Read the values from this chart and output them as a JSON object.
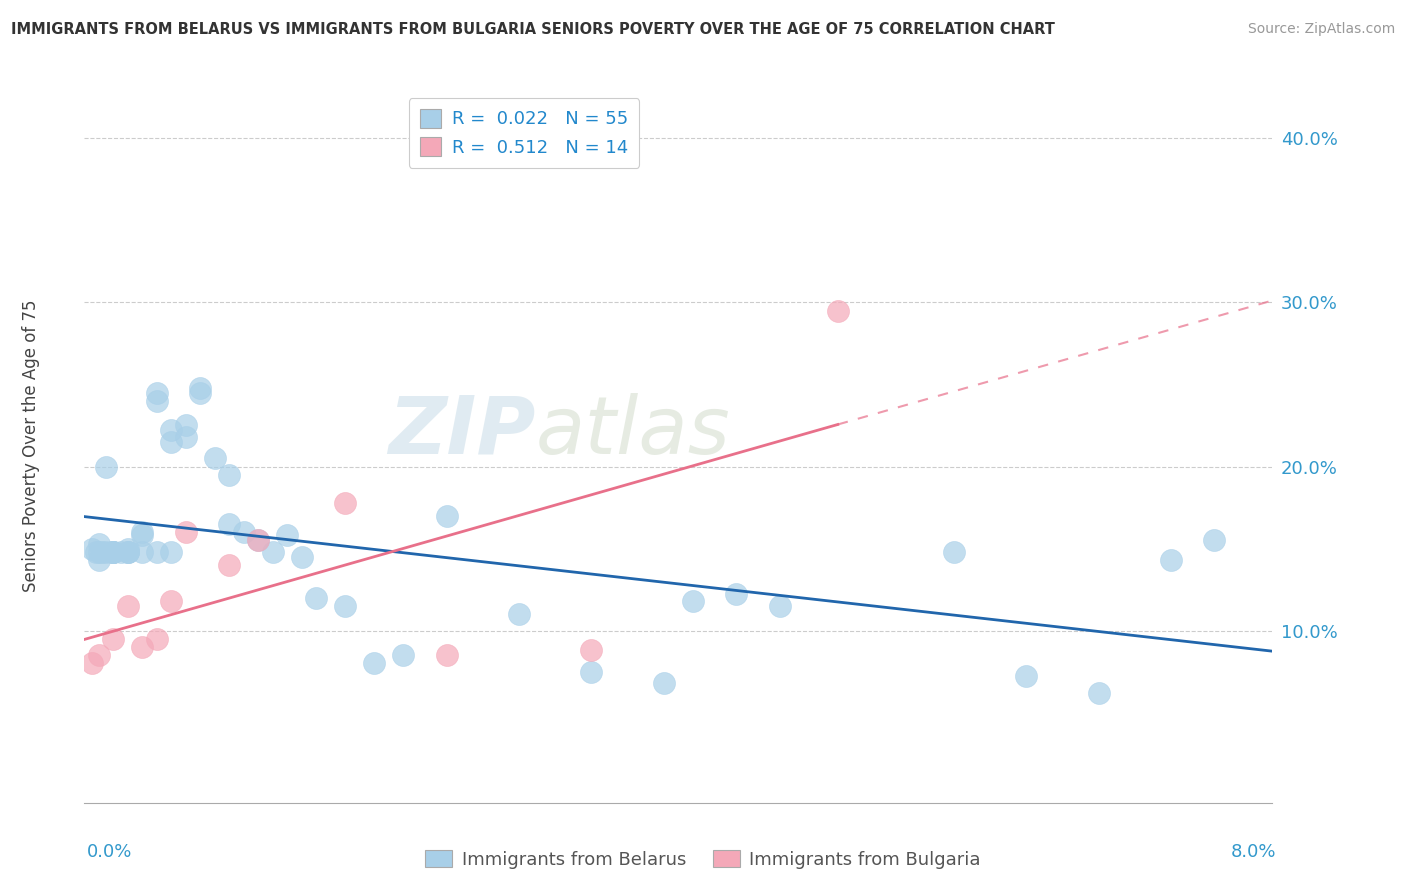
{
  "title": "IMMIGRANTS FROM BELARUS VS IMMIGRANTS FROM BULGARIA SENIORS POVERTY OVER THE AGE OF 75 CORRELATION CHART",
  "source": "Source: ZipAtlas.com",
  "ylabel": "Seniors Poverty Over the Age of 75",
  "xlim": [
    0.0,
    0.082
  ],
  "ylim": [
    -0.005,
    0.43
  ],
  "ytick_vals": [
    0.0,
    0.1,
    0.2,
    0.3,
    0.4
  ],
  "ytick_labels": [
    "",
    "10.0%",
    "20.0%",
    "30.0%",
    "40.0%"
  ],
  "legend_r1": "R =  0.022",
  "legend_n1": "N = 55",
  "legend_r2": "R =  0.512",
  "legend_n2": "N = 14",
  "color_belarus": "#a8cfe8",
  "color_bulgaria": "#f4a8b8",
  "color_belarus_line": "#2166ac",
  "color_bulgaria_line": "#e8708a",
  "watermark_zip": "ZIP",
  "watermark_atlas": "atlas",
  "belarus_x": [
    0.0005,
    0.0008,
    0.001,
    0.001,
    0.001,
    0.0012,
    0.0015,
    0.0015,
    0.002,
    0.002,
    0.002,
    0.002,
    0.002,
    0.0025,
    0.003,
    0.003,
    0.003,
    0.003,
    0.004,
    0.004,
    0.004,
    0.005,
    0.005,
    0.005,
    0.006,
    0.006,
    0.006,
    0.007,
    0.007,
    0.008,
    0.008,
    0.009,
    0.01,
    0.01,
    0.011,
    0.012,
    0.013,
    0.014,
    0.015,
    0.016,
    0.018,
    0.02,
    0.022,
    0.025,
    0.03,
    0.035,
    0.04,
    0.042,
    0.045,
    0.048,
    0.06,
    0.065,
    0.07,
    0.075,
    0.078
  ],
  "belarus_y": [
    0.15,
    0.148,
    0.153,
    0.148,
    0.143,
    0.148,
    0.2,
    0.148,
    0.148,
    0.148,
    0.148,
    0.148,
    0.148,
    0.148,
    0.148,
    0.148,
    0.15,
    0.148,
    0.16,
    0.158,
    0.148,
    0.245,
    0.24,
    0.148,
    0.222,
    0.215,
    0.148,
    0.225,
    0.218,
    0.248,
    0.245,
    0.205,
    0.195,
    0.165,
    0.16,
    0.155,
    0.148,
    0.158,
    0.145,
    0.12,
    0.115,
    0.08,
    0.085,
    0.17,
    0.11,
    0.075,
    0.068,
    0.118,
    0.122,
    0.115,
    0.148,
    0.072,
    0.062,
    0.143,
    0.155
  ],
  "bulgaria_x": [
    0.0005,
    0.001,
    0.002,
    0.003,
    0.004,
    0.005,
    0.006,
    0.007,
    0.01,
    0.012,
    0.018,
    0.025,
    0.035,
    0.052
  ],
  "bulgaria_y": [
    0.08,
    0.085,
    0.095,
    0.115,
    0.09,
    0.095,
    0.118,
    0.16,
    0.14,
    0.155,
    0.178,
    0.085,
    0.088,
    0.295
  ],
  "background_color": "#ffffff",
  "grid_color": "#cccccc"
}
